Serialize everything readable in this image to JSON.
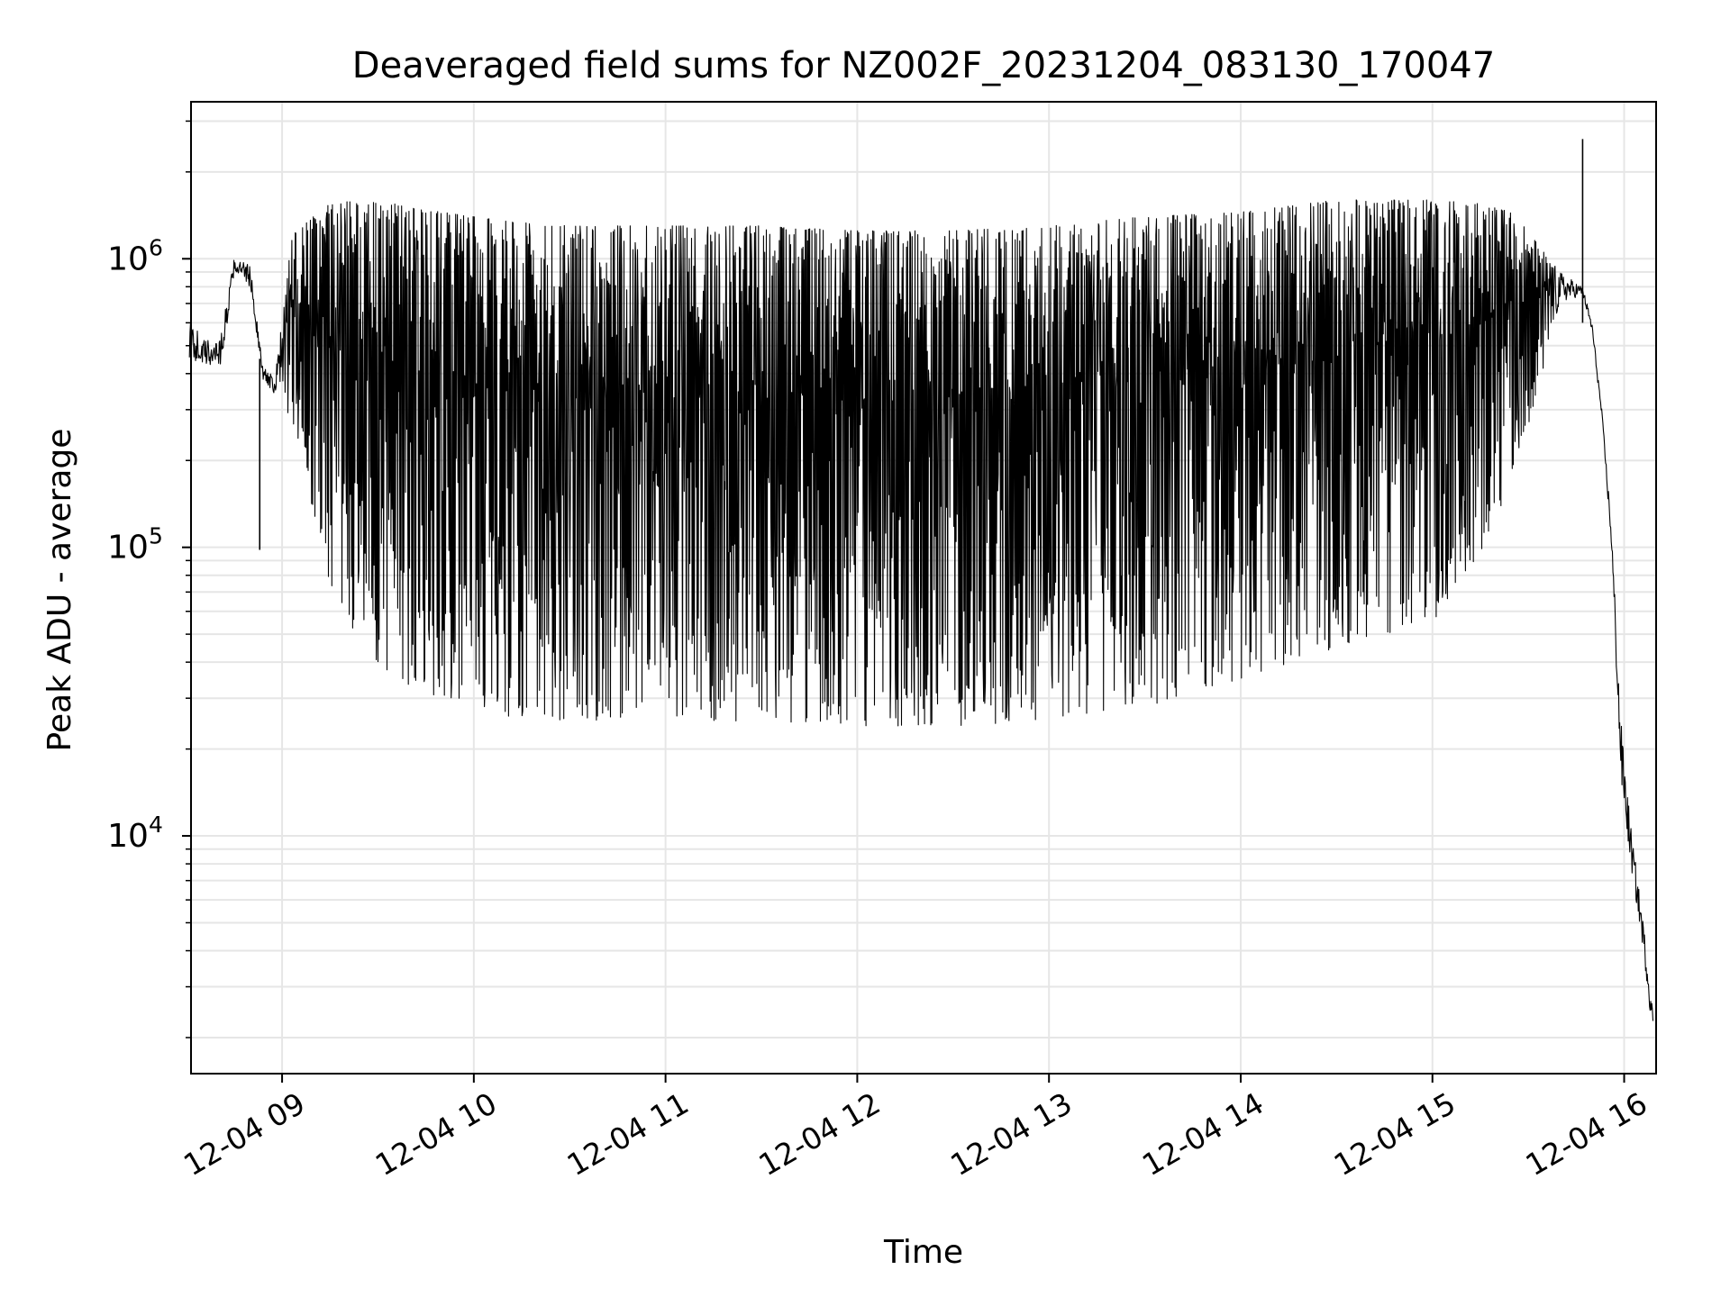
{
  "chart_data": {
    "type": "line",
    "title": "Deaveraged field sums for NZ002F_20231204_083130_170047",
    "xlabel": "Time",
    "ylabel": "Peak ADU - average",
    "xlim": [
      "2023-12-04 08:31:30",
      "2023-12-04 16:10:00"
    ],
    "ylim": [
      1500,
      3500000
    ],
    "yscale": "log",
    "grid": true,
    "line_color": "#000000",
    "grid_color": "#e6e6e6",
    "x_ticks": [
      {
        "value": "2023-12-04 09:00",
        "label": "12-04 09"
      },
      {
        "value": "2023-12-04 10:00",
        "label": "12-04 10"
      },
      {
        "value": "2023-12-04 11:00",
        "label": "12-04 11"
      },
      {
        "value": "2023-12-04 12:00",
        "label": "12-04 12"
      },
      {
        "value": "2023-12-04 13:00",
        "label": "12-04 13"
      },
      {
        "value": "2023-12-04 14:00",
        "label": "12-04 14"
      },
      {
        "value": "2023-12-04 15:00",
        "label": "12-04 15"
      },
      {
        "value": "2023-12-04 16:00",
        "label": "12-04 16"
      }
    ],
    "y_ticks": [
      {
        "value": 10000,
        "base": "10",
        "exp": "4"
      },
      {
        "value": 100000,
        "base": "10",
        "exp": "5"
      },
      {
        "value": 1000000,
        "base": "10",
        "exp": "6"
      }
    ],
    "series": [
      {
        "x": [
          "2023-12-04 08:31",
          "2023-12-04 08:36",
          "2023-12-04 08:41",
          "2023-12-04 08:45",
          "2023-12-04 08:50",
          "2023-12-04 08:54",
          "2023-12-04 08:58",
          "2023-12-04 09:03",
          "2023-12-04 09:08",
          "2023-12-04 09:15",
          "2023-12-04 09:25",
          "2023-12-04 09:35",
          "2023-12-04 09:50",
          "2023-12-04 10:10",
          "2023-12-04 10:30",
          "2023-12-04 11:00",
          "2023-12-04 11:30",
          "2023-12-04 12:00",
          "2023-12-04 12:30",
          "2023-12-04 13:00",
          "2023-12-04 13:30",
          "2023-12-04 14:00",
          "2023-12-04 14:30",
          "2023-12-04 15:00",
          "2023-12-04 15:15",
          "2023-12-04 15:25",
          "2023-12-04 15:40",
          "2023-12-04 15:47",
          "2023-12-04 15:50",
          "2023-12-04 15:53",
          "2023-12-04 15:56",
          "2023-12-04 15:59",
          "2023-12-04 16:02",
          "2023-12-04 16:06",
          "2023-12-04 16:09"
        ],
        "peak": [
          620000,
          520000,
          560000,
          1000000,
          950000,
          420000,
          420000,
          1200000,
          1350000,
          1550000,
          1600000,
          1550000,
          1450000,
          1350000,
          1300000,
          1300000,
          1300000,
          1250000,
          1250000,
          1300000,
          1400000,
          1450000,
          1600000,
          1600000,
          1550000,
          1450000,
          900000,
          800000,
          600000,
          300000,
          120000,
          25000,
          11000,
          5000,
          2500
        ],
        "trough": [
          450000,
          420000,
          420000,
          900000,
          800000,
          380000,
          330000,
          280000,
          160000,
          75000,
          45000,
          35000,
          30000,
          26000,
          25000,
          25000,
          25000,
          24000,
          24000,
          25000,
          28000,
          35000,
          45000,
          55000,
          95000,
          160000,
          700000,
          750000,
          550000,
          280000,
          100000,
          15000,
          8000,
          4000,
          2000
        ]
      }
    ],
    "annotations": [
      {
        "x": "2023-12-04 08:53",
        "y": 98000,
        "note": "dip"
      },
      {
        "x": "2023-12-04 15:47",
        "y": 2600000,
        "note": "spike"
      }
    ]
  }
}
